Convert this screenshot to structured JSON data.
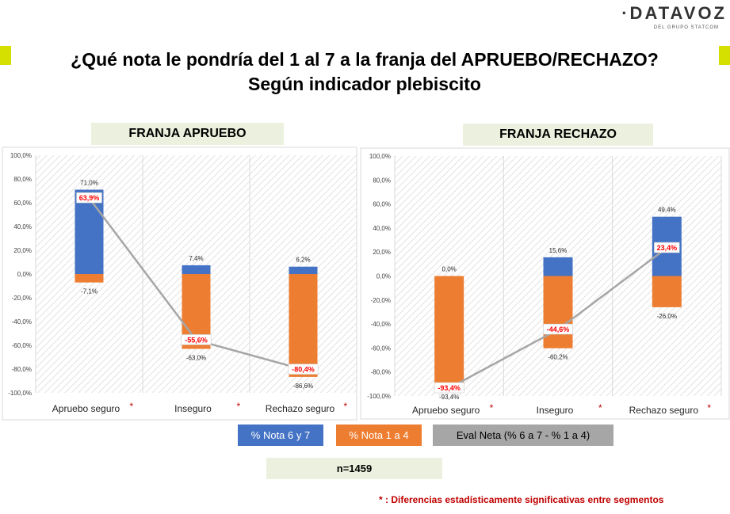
{
  "logo": {
    "main": "·DATAVOZ",
    "sub": "DEL GRUPO STATCOM"
  },
  "title": {
    "line1": "¿Qué nota le pondría del 1 al 7 a la franja del APRUEBO/RECHAZO?",
    "line2": "Según indicador plebiscito"
  },
  "colors": {
    "blue": "#4472c4",
    "orange": "#ed7d31",
    "gray": "#a6a6a6",
    "red": "#ff0000",
    "accent": "#d6e000",
    "label_bg": "#ebf1de"
  },
  "legend": {
    "blue": "% Nota 6 y 7",
    "orange": "% Nota 1 a 4",
    "gray": "Eval Neta (% 6 a 7 - % 1 a 4)"
  },
  "sample": "n=1459",
  "footnote": "* : Diferencias estadísticamente significativas entre segmentos",
  "chart_data": [
    {
      "type": "bar",
      "title": "FRANJA APRUEBO",
      "categories": [
        "Apruebo seguro",
        "Inseguro",
        "Rechazo seguro"
      ],
      "significance_mark": "*",
      "ylim": [
        -100,
        100
      ],
      "yticks": [
        -100,
        -80,
        -60,
        -40,
        -20,
        0,
        20,
        40,
        60,
        80,
        100
      ],
      "ytick_labels": [
        "-100,0%",
        "-80,0%",
        "-60,0%",
        "-40,0%",
        "-20,0%",
        "0,0%",
        "20,0%",
        "40,0%",
        "60,0%",
        "80,0%",
        "100,0%"
      ],
      "series": [
        {
          "name": "% Nota 6 y 7",
          "type": "bar",
          "values": [
            71.0,
            7.4,
            6.2
          ],
          "labels": [
            "71,0%",
            "7,4%",
            "6,2%"
          ]
        },
        {
          "name": "% Nota 1 a 4",
          "type": "bar",
          "values": [
            -7.1,
            -63.0,
            -86.6
          ],
          "labels": [
            "-7,1%",
            "-63,0%",
            "-86,6%"
          ]
        },
        {
          "name": "Eval Neta (% 6 a 7 - % 1 a 4)",
          "type": "line",
          "values": [
            63.9,
            -55.6,
            -80.4
          ],
          "labels": [
            "63,9%",
            "-55,6%",
            "-80,4%"
          ]
        }
      ]
    },
    {
      "type": "bar",
      "title": "FRANJA RECHAZO",
      "categories": [
        "Apruebo seguro",
        "Inseguro",
        "Rechazo seguro"
      ],
      "significance_mark": "*",
      "ylim": [
        -100,
        100
      ],
      "yticks": [
        -100,
        -80,
        -60,
        -40,
        -20,
        0,
        20,
        40,
        60,
        80,
        100
      ],
      "ytick_labels": [
        "-100,0%",
        "-80,0%",
        "-60,0%",
        "-40,0%",
        "-20,0%",
        "0,0%",
        "20,0%",
        "40,0%",
        "60,0%",
        "80,0%",
        "100,0%"
      ],
      "series": [
        {
          "name": "% Nota 6 y 7",
          "type": "bar",
          "values": [
            0.0,
            15.6,
            49.4
          ],
          "labels": [
            "0,0%",
            "15,6%",
            "49,4%"
          ]
        },
        {
          "name": "% Nota 1 a 4",
          "type": "bar",
          "values": [
            -93.4,
            -60.2,
            -26.0
          ],
          "labels": [
            "-93,4%",
            "-60,2%",
            "-26,0%"
          ]
        },
        {
          "name": "Eval Neta (% 6 a 7 - % 1 a 4)",
          "type": "line",
          "values": [
            -93.4,
            -44.6,
            23.4
          ],
          "labels": [
            "-93,4%",
            "-44,6%",
            "23,4%"
          ]
        }
      ]
    }
  ]
}
